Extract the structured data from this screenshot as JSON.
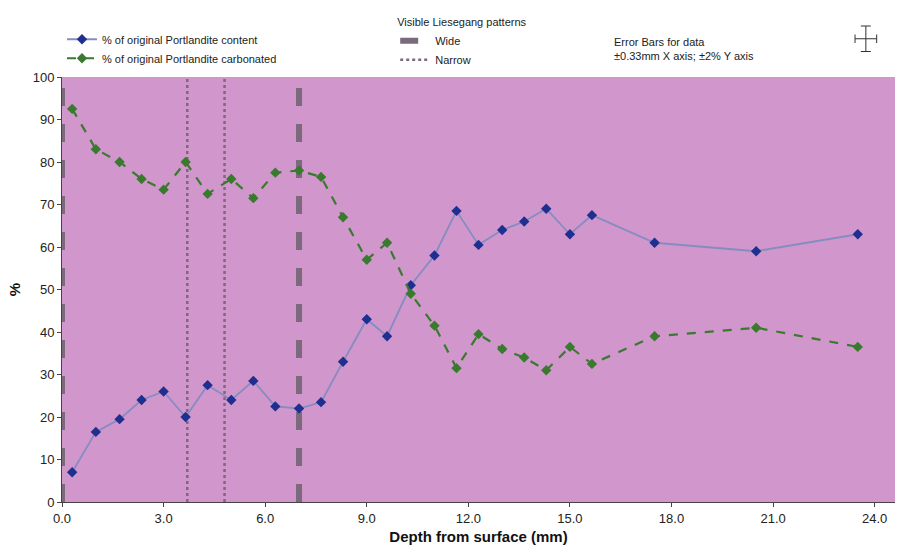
{
  "chart_data": {
    "type": "line",
    "x_label": "Depth from surface (mm)",
    "y_label": "%",
    "x": [
      0.3,
      1.0,
      1.7,
      2.35,
      3.0,
      3.65,
      4.3,
      5.0,
      5.65,
      6.3,
      7.0,
      7.65,
      8.3,
      9.0,
      9.6,
      10.3,
      11.0,
      11.65,
      12.3,
      13.0,
      13.65,
      14.3,
      15.0,
      15.65,
      17.5,
      20.5,
      23.5
    ],
    "series": [
      {
        "name": "% of original Portlandite content",
        "color": "#1f2f8f",
        "marker": "diamond",
        "line_style": "solid",
        "values": [
          7,
          16.5,
          19.5,
          24,
          26,
          20,
          27.5,
          24,
          28.5,
          22.5,
          22,
          23.5,
          33,
          43,
          39,
          51,
          58,
          68.5,
          60.5,
          64,
          66,
          69,
          63,
          67.5,
          61,
          59,
          63
        ]
      },
      {
        "name": "% of original Portlandite carbonated",
        "color": "#3a7a2e",
        "marker": "diamond",
        "line_style": "dashed",
        "values": [
          92.5,
          83,
          80,
          76,
          73.5,
          80,
          72.5,
          76,
          71.5,
          77.5,
          78,
          76.5,
          67,
          57,
          61,
          49,
          41.5,
          31.5,
          39.5,
          36,
          34,
          31,
          36.5,
          32.5,
          39,
          41,
          36.5
        ]
      }
    ],
    "liesegang": {
      "title": "Visible Liesegang patterns",
      "lines": [
        {
          "name": "Wide",
          "x": [
            0.0,
            7.0
          ],
          "color": "#7a6a7c",
          "line_style": "dashed"
        },
        {
          "name": "Narrow",
          "x": [
            3.7,
            4.8
          ],
          "color": "#7a6a7c",
          "line_style": "dotted"
        }
      ]
    },
    "error_bars_note": [
      "Error Bars for data",
      "±0.33mm X axis; ±2% Y axis"
    ],
    "xlim": [
      0,
      24.6
    ],
    "xticks": [
      {
        "value": 0,
        "label": "0.0"
      },
      {
        "value": 3,
        "label": "3.0"
      },
      {
        "value": 6,
        "label": "6.0"
      },
      {
        "value": 9,
        "label": "9.0"
      },
      {
        "value": 12,
        "label": "12.0"
      },
      {
        "value": 15,
        "label": "15.0"
      },
      {
        "value": 18,
        "label": "18.0"
      },
      {
        "value": 21,
        "label": "21.0"
      },
      {
        "value": 24,
        "label": "24.0"
      }
    ],
    "ylim": [
      0,
      100
    ],
    "yticks": [
      0,
      10,
      20,
      30,
      40,
      50,
      60,
      70,
      80,
      90,
      100
    ],
    "grid": false,
    "legend": "top"
  }
}
